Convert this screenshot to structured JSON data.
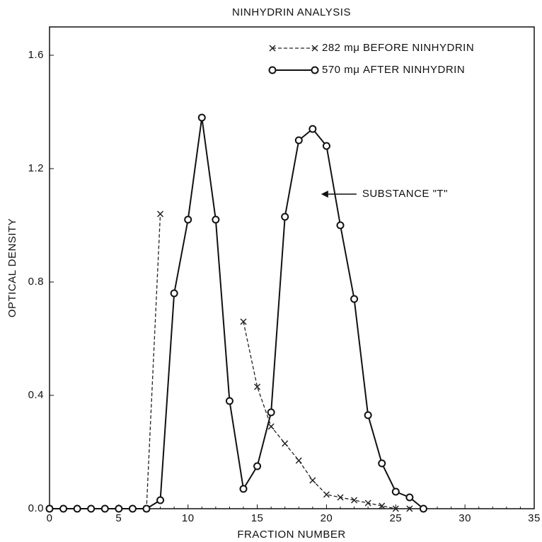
{
  "chart_data": {
    "type": "line",
    "title": "NINHYDRIN   ANALYSIS",
    "xlabel": "FRACTION   NUMBER",
    "ylabel": "OPTICAL   DENSITY",
    "xlim": [
      0,
      35
    ],
    "xticks": [
      0,
      5,
      10,
      15,
      20,
      25,
      30,
      35
    ],
    "ylim": [
      0,
      1.7
    ],
    "yticks": [
      {
        "value": 0,
        "label": "0.0"
      },
      0.4,
      0.8,
      1.2,
      1.6
    ],
    "legend": "upper right",
    "series": [
      {
        "name": "282 mμ BEFORE NINHYDRIN",
        "color": "#222",
        "linestyle": "dashed",
        "marker": "x",
        "x": [
          0,
          7,
          8,
          9,
          10,
          11,
          12,
          13,
          14,
          15,
          16,
          17,
          18,
          19,
          20,
          21,
          22,
          23,
          24,
          25,
          26
        ],
        "values": [
          0,
          0,
          1.04,
          null,
          null,
          null,
          null,
          null,
          0.66,
          0.43,
          0.29,
          0.23,
          0.17,
          0.1,
          0.05,
          0.04,
          0.03,
          0.02,
          0.01,
          0.0,
          0.0
        ]
      },
      {
        "name": "570 mμ AFTER NINHYDRIN",
        "color": "#111",
        "linestyle": "solid",
        "marker": "o",
        "x": [
          0,
          1,
          2,
          3,
          4,
          5,
          6,
          7,
          8,
          9,
          10,
          11,
          12,
          13,
          14,
          15,
          16,
          17,
          18,
          19,
          20,
          21,
          22,
          23,
          24,
          25,
          26,
          27
        ],
        "values": [
          0,
          0,
          0,
          0,
          0,
          0,
          0,
          0,
          0.03,
          0.76,
          1.02,
          1.38,
          1.02,
          0.38,
          0.07,
          0.15,
          0.34,
          1.03,
          1.3,
          1.34,
          1.28,
          1.0,
          0.74,
          0.33,
          0.16,
          0.06,
          0.04,
          0
        ]
      }
    ],
    "annotation": {
      "text": "SUBSTANCE \"T\"",
      "x": 19,
      "y": 1.11
    }
  }
}
